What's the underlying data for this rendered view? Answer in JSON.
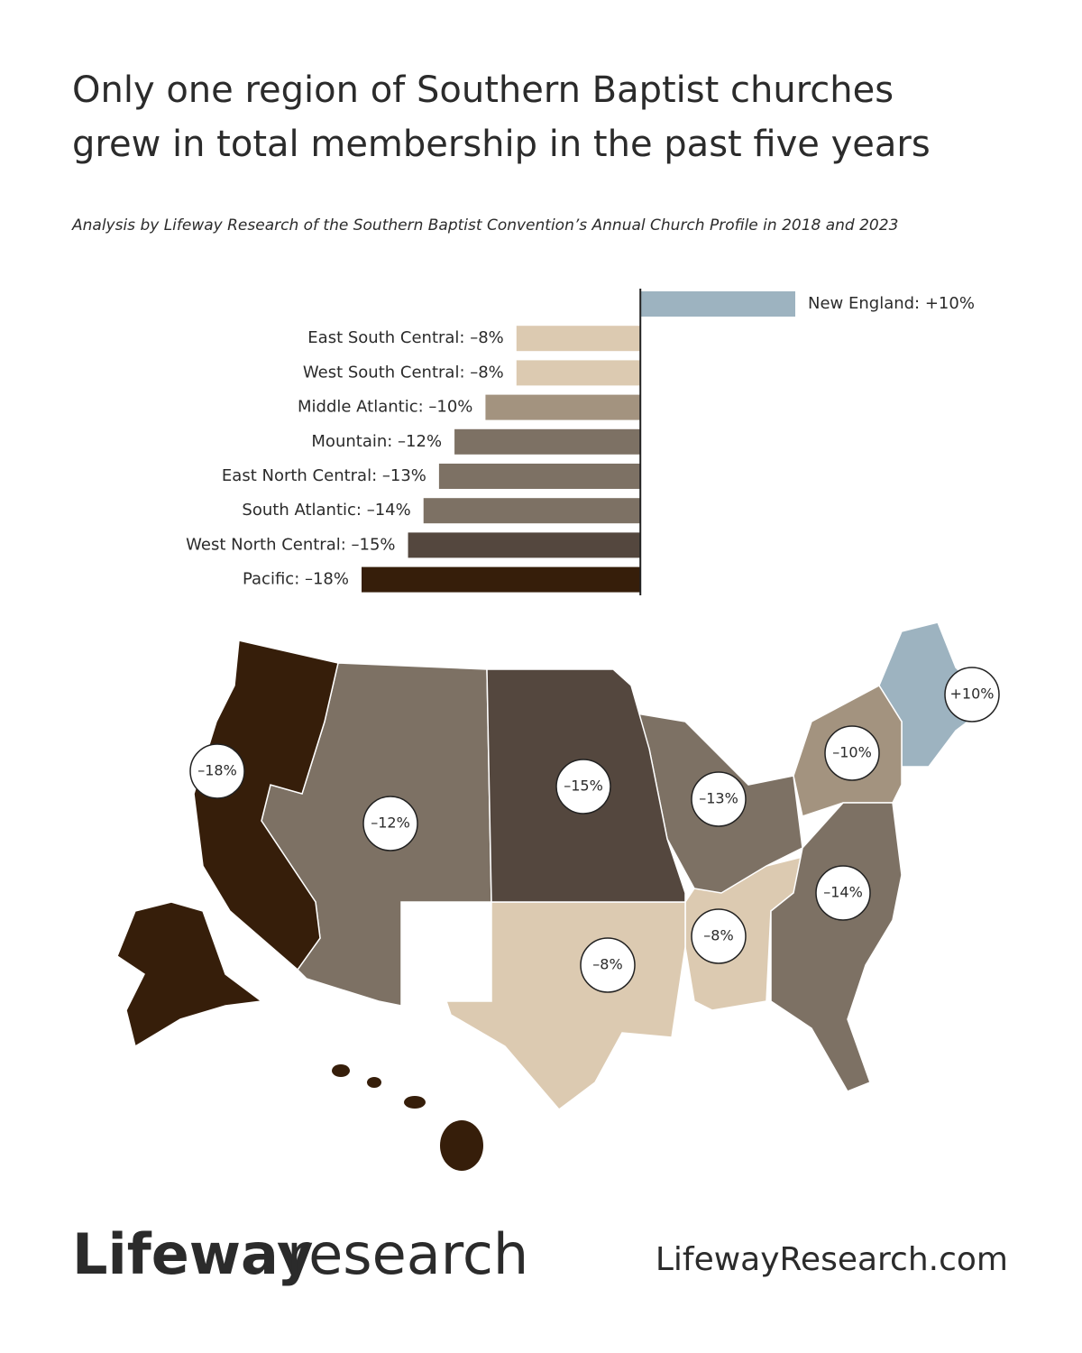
{
  "title_lines": [
    "Only one region of Southern Baptist churches",
    "grew in total membership in the past five years"
  ],
  "subtitle": "Analysis by Lifeway Research of the Southern Baptist Convention’s Annual Church Profile in 2018 and 2023",
  "chart_data": {
    "type": "bar",
    "orientation": "horizontal",
    "categories": [
      "New England: +10%",
      "East South Central: –8%",
      "West South Central: –8%",
      "Middle Atlantic: –10%",
      "Mountain: –12%",
      "East North Central: –13%",
      "South Atlantic: –14%",
      "West North Central: –15%",
      "Pacific: –18%"
    ],
    "values": [
      10,
      -8,
      -8,
      -10,
      -12,
      -13,
      -14,
      -15,
      -18
    ],
    "value_labels": [
      "+10%",
      "–8%",
      "–8%",
      "–10%",
      "–12%",
      "–13%",
      "–14%",
      "–15%",
      "–18%"
    ],
    "colors": [
      "#9db3c0",
      "#dccab1",
      "#dccab1",
      "#a3937f",
      "#7d7164",
      "#7d7164",
      "#7d7164",
      "#54473e",
      "#361e0a"
    ],
    "xlim": [
      -18,
      10
    ]
  },
  "footer": {
    "logo_main": "Lifeway",
    "logo_accent": "research",
    "url": "LifewayResearch.com"
  }
}
